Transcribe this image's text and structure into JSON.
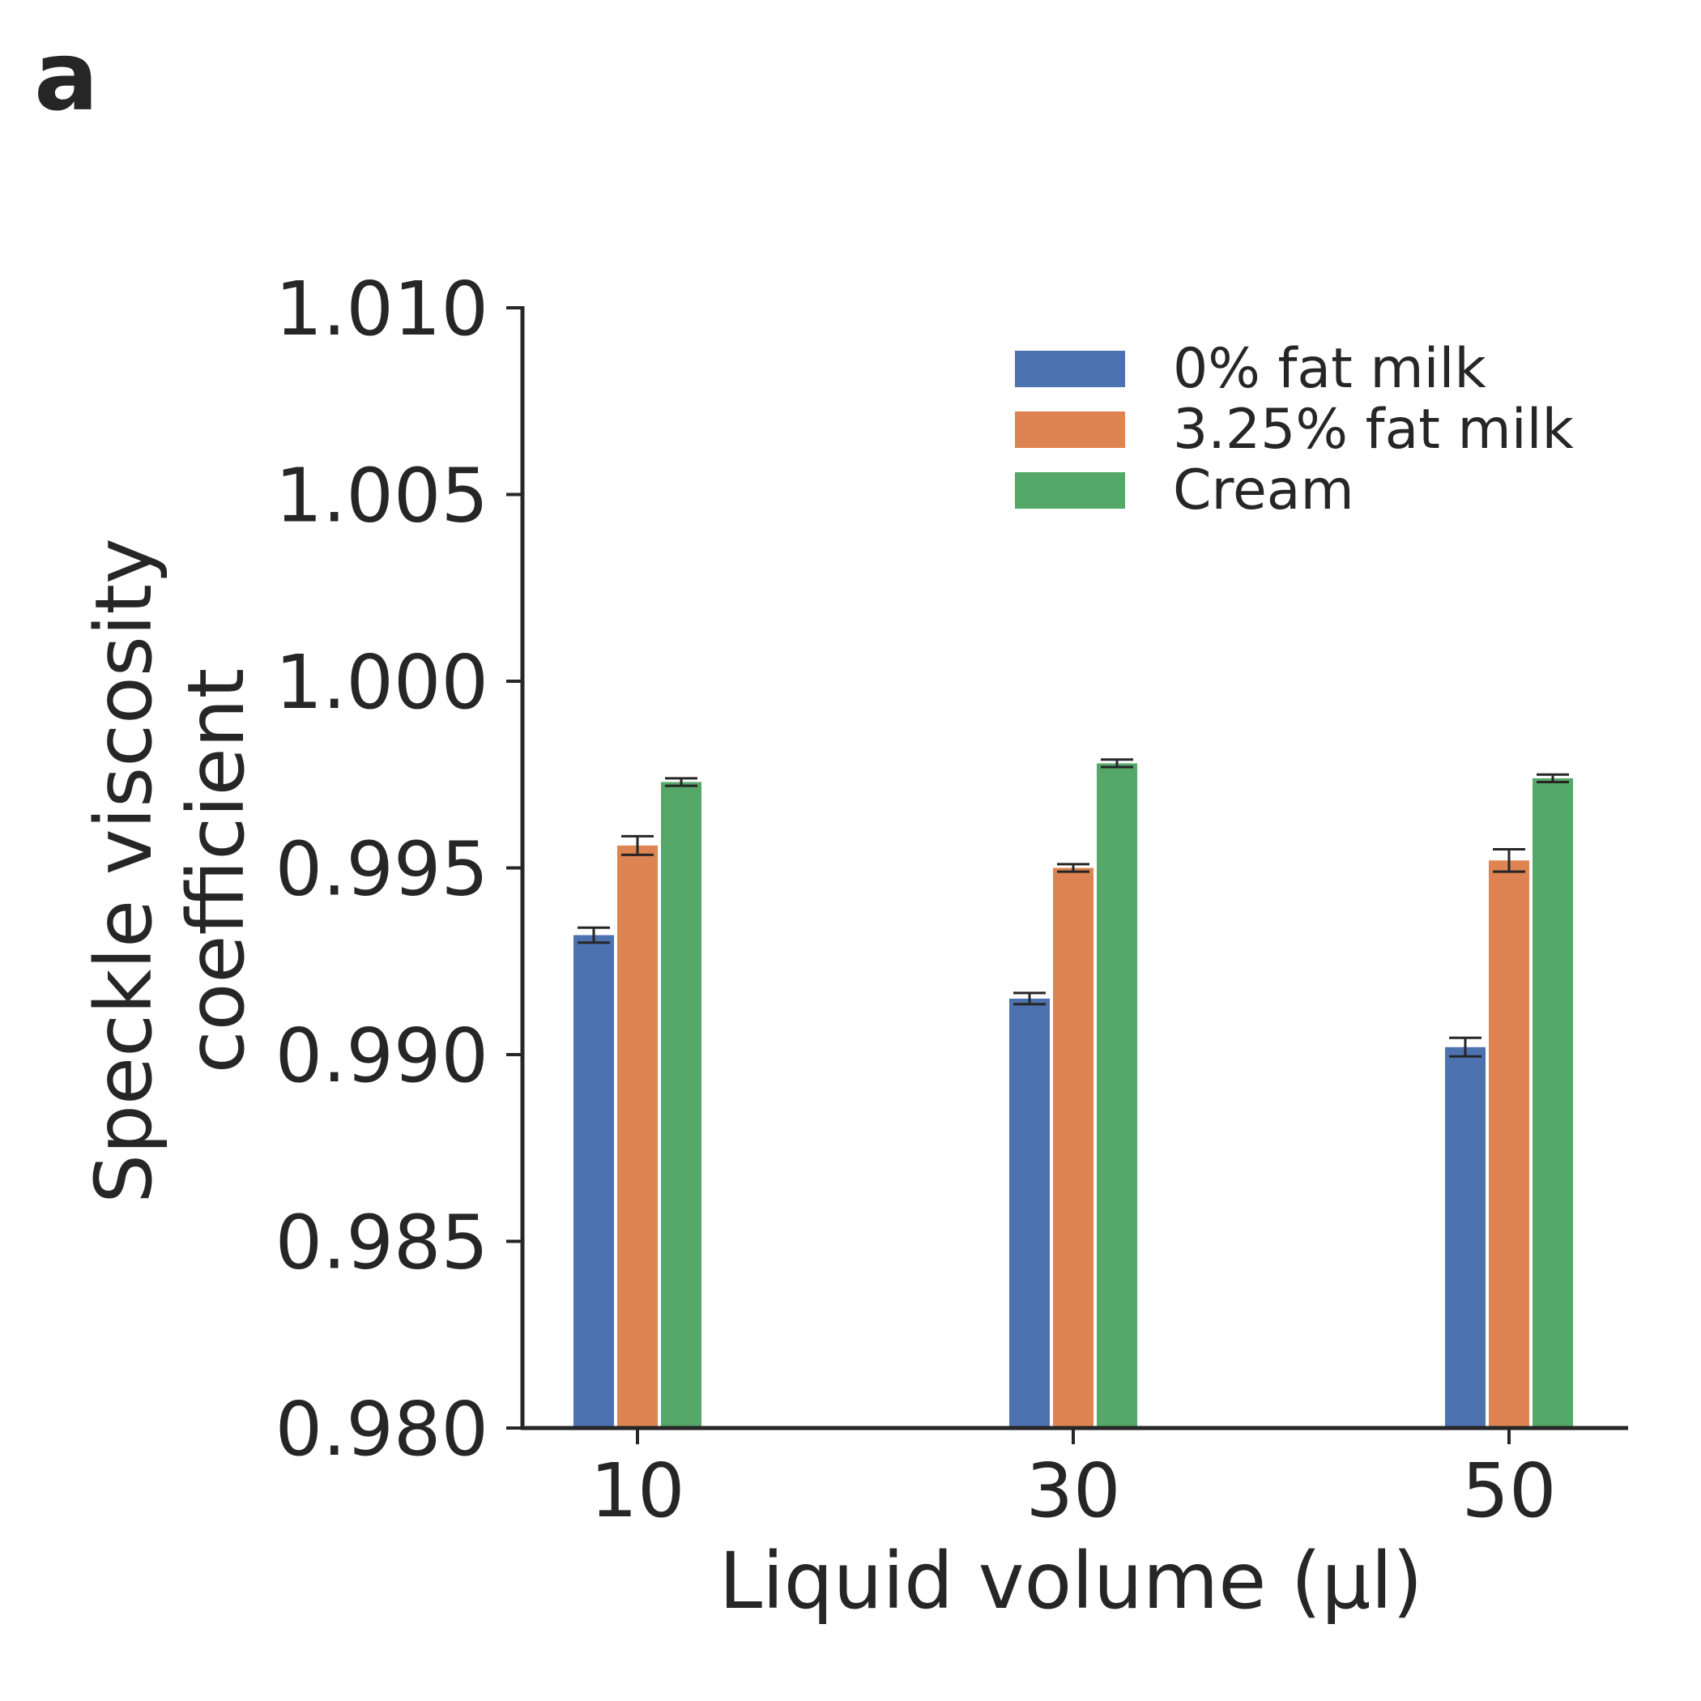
{
  "panel_label": "a",
  "chart_data": {
    "type": "bar",
    "title": "",
    "xlabel": "Liquid volume (µl)",
    "ylabel_lines": [
      "Speckle viscosity",
      "coefficient"
    ],
    "categories": [
      "10",
      "30",
      "50"
    ],
    "ylim": [
      0.98,
      1.01
    ],
    "yticks": [
      0.98,
      0.985,
      0.99,
      0.995,
      1.0,
      1.005,
      1.01
    ],
    "ytick_labels": [
      "0.980",
      "0.985",
      "0.990",
      "0.995",
      "1.000",
      "1.005",
      "1.010"
    ],
    "legend_position": "top-right",
    "series": [
      {
        "name": "0% fat milk",
        "color": "#4c72b0",
        "values": [
          0.9932,
          0.9915,
          0.9902
        ],
        "errors": [
          0.0002,
          0.00015,
          0.00025
        ]
      },
      {
        "name": "3.25% fat milk",
        "color": "#dd8452",
        "values": [
          0.9956,
          0.995,
          0.9952
        ],
        "errors": [
          0.00025,
          0.0001,
          0.0003
        ]
      },
      {
        "name": "Cream",
        "color": "#55a868",
        "values": [
          0.9973,
          0.9978,
          0.9974
        ],
        "errors": [
          0.0001,
          0.0001,
          0.0001
        ]
      }
    ]
  }
}
